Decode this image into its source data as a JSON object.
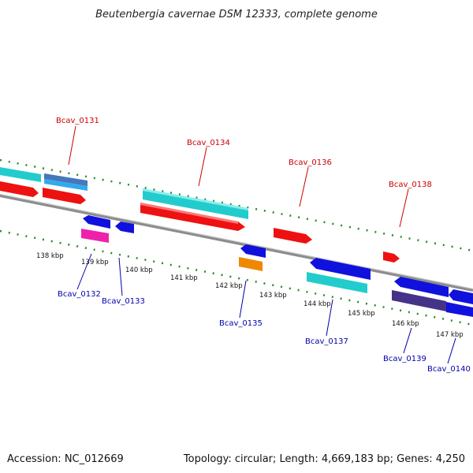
{
  "title": "Beutenbergia cavernae DSM 12333, complete genome",
  "footer": {
    "accession": "Accession: NC_012669",
    "topology": "Topology: circular; Length: 4,669,183 bp; Genes: 4,250"
  },
  "colors": {
    "top_label": "#cc0000",
    "bottom_label": "#0000aa",
    "tick_dots": "#2a8a2a",
    "backbone": "#8c8c8c",
    "red_gene": "#ee1111",
    "cyan_gene": "#22cccc",
    "blue_gene": "#1111dd",
    "magenta_gene": "#ee22aa",
    "orange_gene": "#ee8800",
    "navy_gene": "#443388",
    "lightblue_gene": "#33aaee",
    "steel_gene": "#4477bb"
  },
  "scale_ticks": [
    "138 kbp",
    "139 kbp",
    "140 kbp",
    "141 kbp",
    "142 kbp",
    "143 kbp",
    "144 kbp",
    "145 kbp",
    "146 kbp",
    "147 kbp"
  ],
  "gene_labels_top": [
    "Bcav_0131",
    "Bcav_0134",
    "Bcav_0136",
    "Bcav_0138"
  ],
  "gene_labels_bottom": [
    "Bcav_0132",
    "Bcav_0133",
    "Bcav_0135",
    "Bcav_0137",
    "Bcav_0139",
    "Bcav_0140"
  ]
}
